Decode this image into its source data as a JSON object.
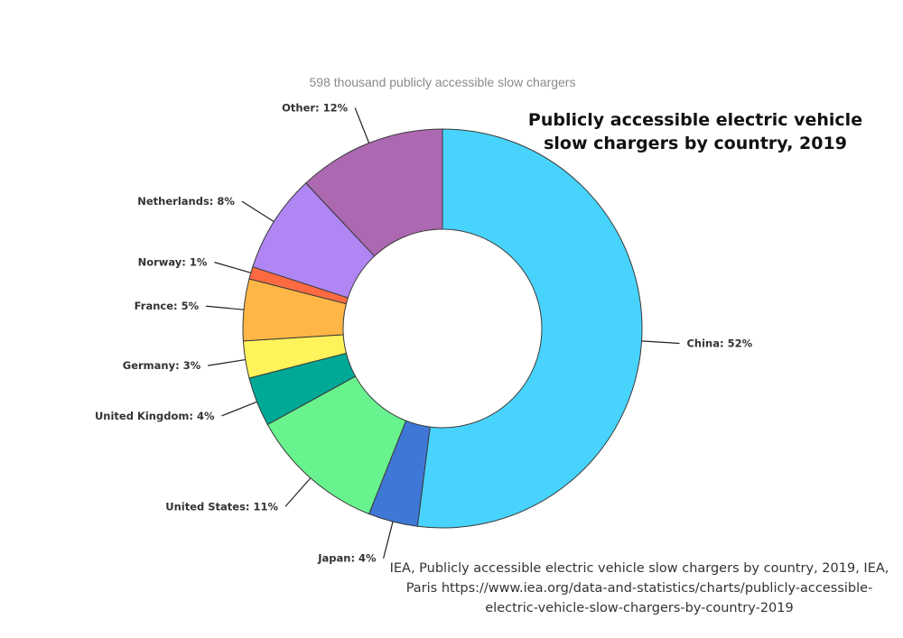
{
  "chart_data": {
    "type": "pie",
    "subtitle": "598 thousand publicly accessible slow chargers",
    "title": "Publicly accessible electric vehicle slow chargers by country, 2019",
    "source_note": "IEA, Publicly accessible electric vehicle slow chargers by country, 2019, IEA, Paris https://www.iea.org/data-and-statistics/charts/publicly-accessible-electric-vehicle-slow-chargers-by-country-2019",
    "unit": "%",
    "slices": [
      {
        "name": "China",
        "value": 52,
        "label": "China: 52%",
        "color": "#48d3fd"
      },
      {
        "name": "Japan",
        "value": 4,
        "label": "Japan: 4%",
        "color": "#3e77d6"
      },
      {
        "name": "United States",
        "value": 11,
        "label": "United States: 11%",
        "color": "#68f38f"
      },
      {
        "name": "United Kingdom",
        "value": 4,
        "label": "United Kingdom: 4%",
        "color": "#00a896"
      },
      {
        "name": "Germany",
        "value": 3,
        "label": "Germany: 3%",
        "color": "#fef35a"
      },
      {
        "name": "France",
        "value": 5,
        "label": "France: 5%",
        "color": "#feb646"
      },
      {
        "name": "Norway",
        "value": 1,
        "label": "Norway: 1%",
        "color": "#fd6a42"
      },
      {
        "name": "Netherlands",
        "value": 8,
        "label": "Netherlands: 8%",
        "color": "#af86f3"
      },
      {
        "name": "Other",
        "value": 12,
        "label": "Other: 12%",
        "color": "#ad68b2"
      }
    ]
  }
}
